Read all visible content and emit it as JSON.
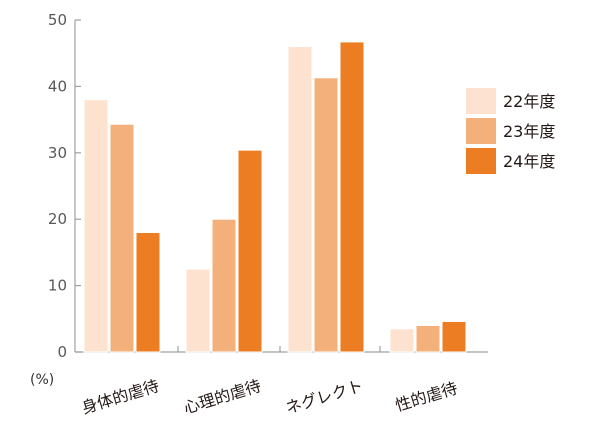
{
  "chart_data": {
    "type": "bar",
    "title": "",
    "xlabel": "",
    "ylabel": "",
    "unit_label": "(%)",
    "ylim": [
      0,
      50
    ],
    "yticks": [
      0,
      10,
      20,
      30,
      40,
      50
    ],
    "grid": false,
    "legend_position": "right",
    "categories": [
      "身体的虐待",
      "心理的虐待",
      "ネグレクト",
      "性的虐待"
    ],
    "series": [
      {
        "name": "22年度",
        "color": "#fde3cf",
        "values": [
          38,
          12.5,
          46,
          3.5
        ]
      },
      {
        "name": "23年度",
        "color": "#f4b07a",
        "values": [
          34.3,
          20,
          41.3,
          4
        ]
      },
      {
        "name": "24年度",
        "color": "#ec7d22",
        "values": [
          18,
          30.4,
          46.7,
          4.6
        ]
      }
    ]
  }
}
